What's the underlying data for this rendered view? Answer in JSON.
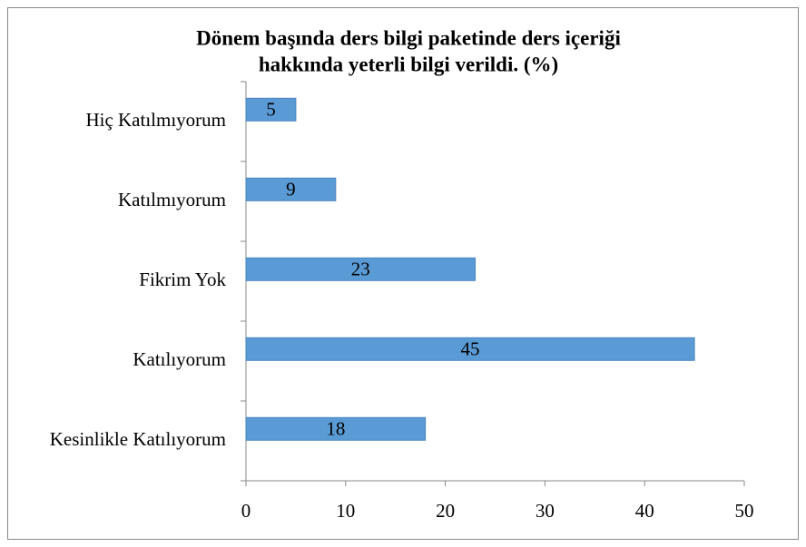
{
  "chart_data": {
    "type": "bar",
    "orientation": "horizontal",
    "title": [
      "Dönem başında ders bilgi paketinde ders içeriği",
      "hakkında yeterli bilgi verildi. (%)"
    ],
    "categories": [
      "Hiç Katılmıyorum",
      "Katılmıyorum",
      "Fikrim Yok",
      "Katılıyorum",
      "Kesinlikle Katılıyorum"
    ],
    "values": [
      5,
      9,
      23,
      45,
      18
    ],
    "color": "#5b9bd5",
    "xlim": [
      0,
      50
    ],
    "xticks": [
      0,
      10,
      20,
      30,
      40,
      50
    ],
    "grid": false
  }
}
